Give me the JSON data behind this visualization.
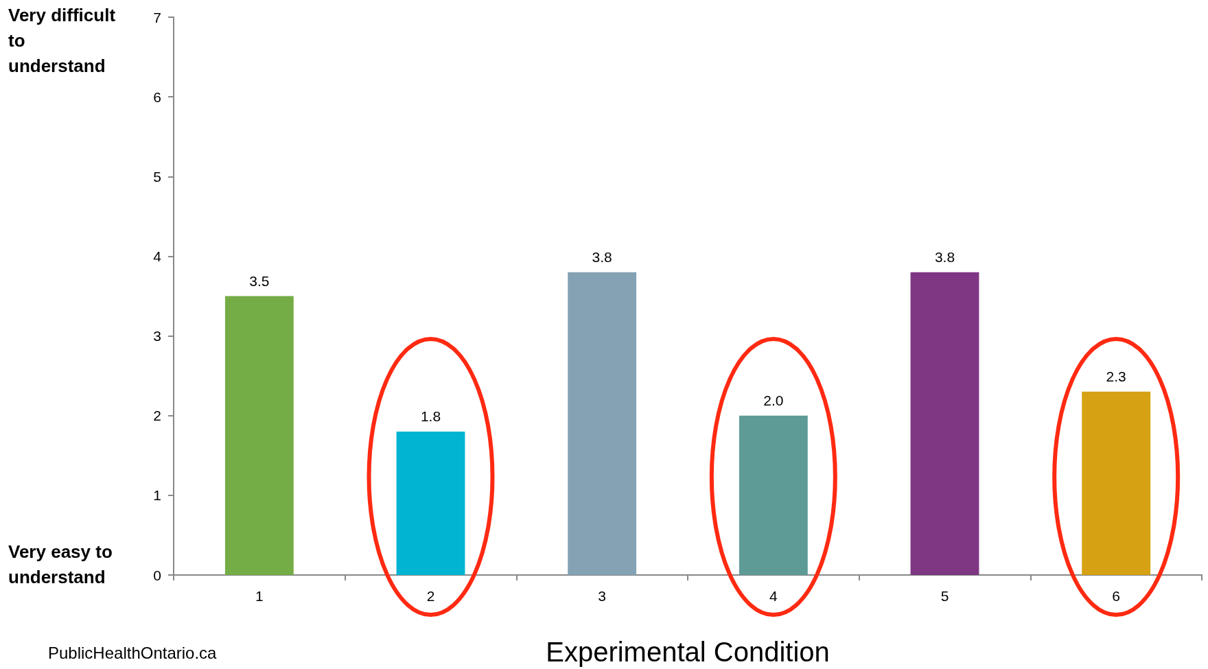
{
  "chart_data": {
    "type": "bar",
    "xlabel": "Experimental Condition",
    "categories": [
      "1",
      "2",
      "3",
      "4",
      "5",
      "6"
    ],
    "values": [
      3.5,
      1.8,
      3.8,
      2.0,
      3.8,
      2.3
    ],
    "colors": [
      "#74ac46",
      "#00b4d2",
      "#84a2b3",
      "#5e9b97",
      "#7f3784",
      "#d6a213"
    ],
    "ylim": [
      0,
      7
    ],
    "yticks": [
      0,
      1,
      2,
      3,
      4,
      5,
      6,
      7
    ],
    "value_labels": [
      "3.5",
      "1.8",
      "3.8",
      "2.0",
      "3.8",
      "2.3"
    ],
    "annotations": [
      "Very difficult to understand",
      "Very easy to understand",
      "PublicHealthOntario.ca"
    ]
  }
}
